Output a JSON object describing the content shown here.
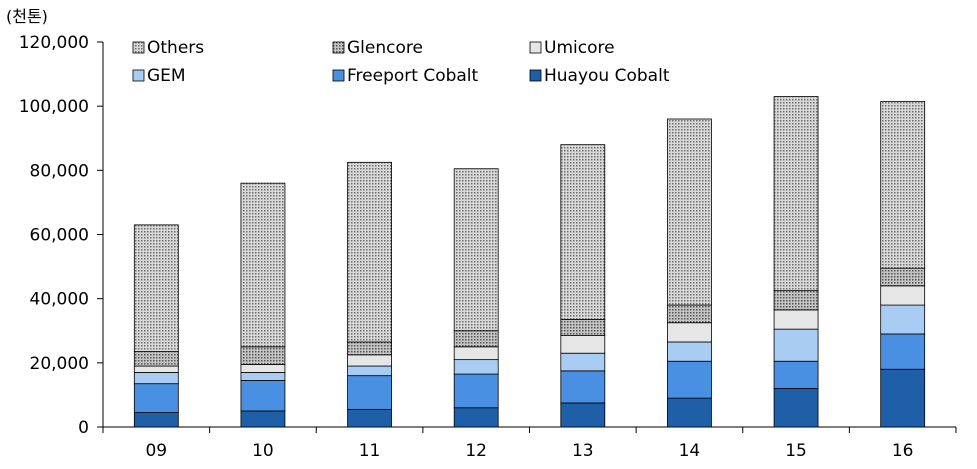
{
  "chart_data": {
    "type": "bar",
    "stacked": true,
    "unit_label": "(천톤)",
    "title": "",
    "xlabel": "",
    "ylabel": "",
    "categories": [
      "09",
      "10",
      "11",
      "12",
      "13",
      "14",
      "15",
      "16"
    ],
    "ylim": [
      0,
      120000
    ],
    "yticks": [
      0,
      20000,
      40000,
      60000,
      80000,
      100000,
      120000
    ],
    "ytick_labels": [
      "0",
      "20,000",
      "40,000",
      "60,000",
      "80,000",
      "100,000",
      "120,000"
    ],
    "grid": false,
    "legend_position": "top",
    "series": [
      {
        "name": "Huayou Cobalt",
        "color": "#1f5fa8",
        "values": [
          4500,
          5000,
          5500,
          6000,
          7500,
          9000,
          12000,
          18000
        ]
      },
      {
        "name": "Freeport Cobalt",
        "color": "#4a90e2",
        "values": [
          9000,
          9500,
          10500,
          10500,
          10000,
          11500,
          8500,
          11000
        ]
      },
      {
        "name": "GEM",
        "color": "#a9cdf2",
        "values": [
          3500,
          2500,
          3000,
          4500,
          5500,
          6000,
          10000,
          9000
        ]
      },
      {
        "name": "Umicore",
        "color": "#e6e6e6",
        "values": [
          2000,
          2500,
          3500,
          4000,
          5500,
          6000,
          6000,
          6000
        ]
      },
      {
        "name": "Glencore",
        "color": "#b5b5b5",
        "values": [
          4500,
          5500,
          4000,
          5000,
          5000,
          5500,
          6000,
          5500
        ]
      },
      {
        "name": "Others",
        "color": "#c8c8c8",
        "values": [
          39500,
          51000,
          56000,
          50500,
          54500,
          58000,
          60500,
          52000
        ]
      }
    ],
    "legend_order": [
      "Others",
      "Glencore",
      "Umicore",
      "GEM",
      "Freeport Cobalt",
      "Huayou Cobalt"
    ]
  }
}
